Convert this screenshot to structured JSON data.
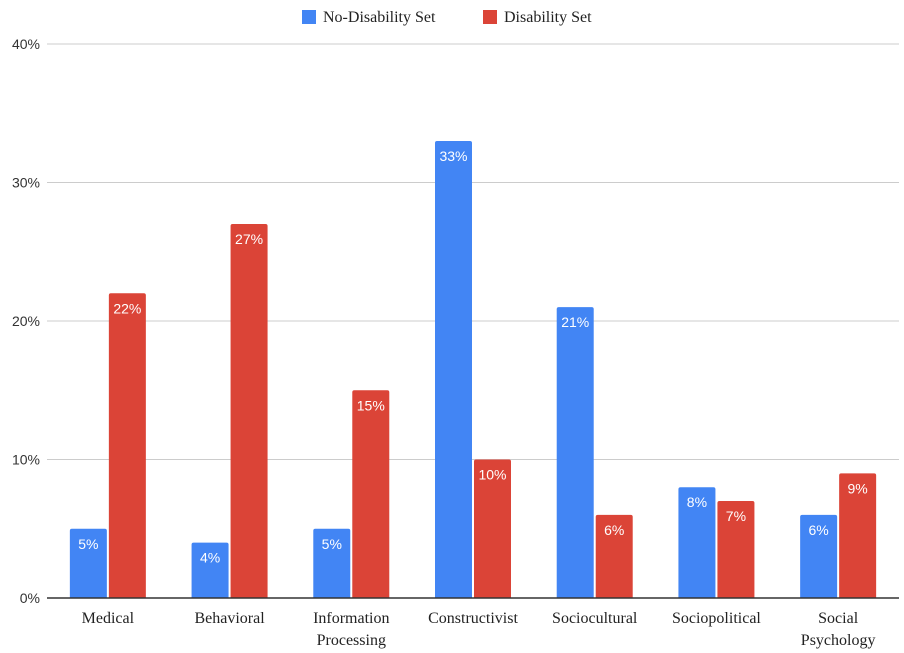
{
  "chart_data": {
    "type": "bar",
    "categories": [
      [
        "Medical"
      ],
      [
        "Behavioral"
      ],
      [
        "Information",
        "Processing"
      ],
      [
        "Constructivist"
      ],
      [
        "Sociocultural"
      ],
      [
        "Sociopolitical"
      ],
      [
        "Social",
        "Psychology"
      ]
    ],
    "series": [
      {
        "name": "No-Disability Set",
        "color": "#4285f4",
        "values": [
          5,
          4,
          5,
          33,
          21,
          8,
          6
        ],
        "labels": [
          "5%",
          "4%",
          "5%",
          "33%",
          "21%",
          "8%",
          "6%"
        ]
      },
      {
        "name": "Disability Set",
        "color": "#db4437",
        "values": [
          22,
          27,
          15,
          10,
          6,
          7,
          9
        ],
        "labels": [
          "22%",
          "27%",
          "15%",
          "10%",
          "6%",
          "7%",
          "9%"
        ]
      }
    ],
    "ylim": [
      0,
      40
    ],
    "yticks": [
      0,
      10,
      20,
      30,
      40
    ],
    "ytick_labels": [
      "0%",
      "10%",
      "20%",
      "30%",
      "40%"
    ],
    "grid": true,
    "legend_position": "top-center"
  }
}
